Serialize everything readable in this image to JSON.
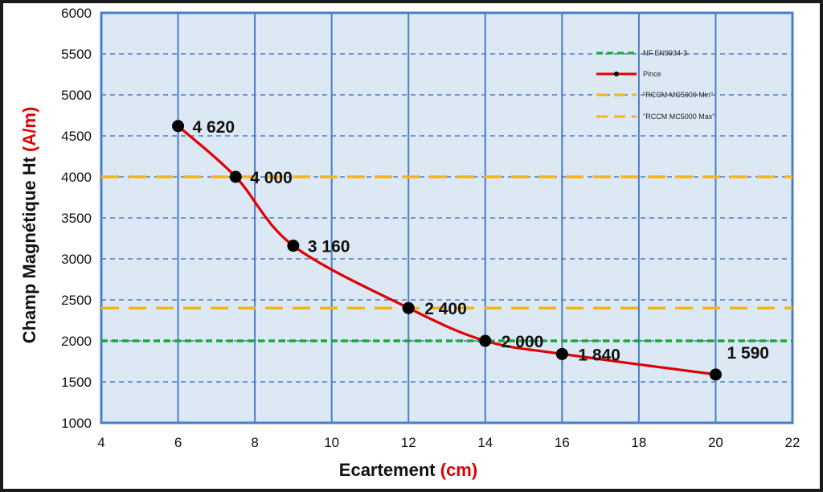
{
  "chart_data": {
    "type": "line",
    "xlabel": "Ecartement",
    "xlabel_unit": "(cm)",
    "ylabel": "Champ Magnétique Ht",
    "ylabel_unit": "(A/m)",
    "xlim": [
      4,
      22
    ],
    "ylim": [
      1000,
      6000
    ],
    "x_ticks": [
      4,
      6,
      8,
      10,
      12,
      14,
      16,
      18,
      20,
      22
    ],
    "y_ticks": [
      1000,
      1500,
      2000,
      2500,
      3000,
      3500,
      4000,
      4500,
      5000,
      5500,
      6000
    ],
    "grid": true,
    "legend_position": "top-right",
    "series": [
      {
        "name": "Pince",
        "color": "#e00000",
        "marker": "circle",
        "x": [
          6,
          7.5,
          9,
          12,
          14,
          16,
          20
        ],
        "y": [
          4620,
          4000,
          3160,
          2400,
          2000,
          1840,
          1590
        ],
        "labels": [
          "4 620",
          "4 000",
          "3 160",
          "2 400",
          "2 000",
          "1 840",
          "1 590"
        ]
      }
    ],
    "reference_lines": [
      {
        "name": "NF EN9934-3",
        "value": 2000,
        "color": "#1aa83a",
        "style": "dashed"
      },
      {
        "name": "\"RCCM MC5000 Min\"",
        "value": 2400,
        "color": "#f2b61c",
        "style": "long-dashed"
      },
      {
        "name": "\"RCCM MC5000 Max\"",
        "value": 4000,
        "color": "#f2b61c",
        "style": "long-dashed"
      }
    ],
    "colors": {
      "plot_background": "#dce8f4",
      "major_grid": "#4a7ec8",
      "minor_grid": "#4a7ec8",
      "unit_accent": "#e00000"
    }
  }
}
